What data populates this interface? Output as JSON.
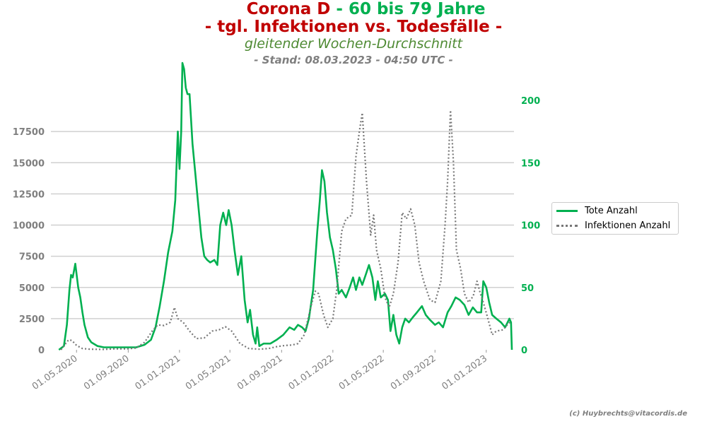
{
  "title": {
    "line1_red": "Corona D",
    "line1_green": " - 60 bis 79 Jahre",
    "line2": "- tgl. Infektionen vs. Todesfälle -",
    "line3": "gleitender Wochen-Durchschnitt",
    "line4": "- Stand: 08.03.2023 - 04:50 UTC -"
  },
  "credit": "(c) Huybrechts@vitacordis.de",
  "legend": {
    "placement": "right",
    "items": [
      "Tote Anzahl",
      "Infektionen Anzahl"
    ]
  },
  "colors": {
    "deaths": "#00b050",
    "infections": "#777777",
    "title_red": "#c00000",
    "title_green": "#00b050",
    "grid": "#d0d0d0",
    "left_ticks": "#7f7f7f",
    "right_ticks": "#00b050"
  },
  "chart_data": {
    "type": "line",
    "x_type": "date",
    "xlim": [
      "2020-03-01",
      "2023-03-08"
    ],
    "x_ticks": [
      {
        "date": "2020-05-01",
        "label": "01.05.2020"
      },
      {
        "date": "2020-09-01",
        "label": "01.09.2020"
      },
      {
        "date": "2021-01-01",
        "label": "01.01.2021"
      },
      {
        "date": "2021-05-01",
        "label": "01.05.2021"
      },
      {
        "date": "2021-09-01",
        "label": "01.09.2021"
      },
      {
        "date": "2022-01-01",
        "label": "01.01.2022"
      },
      {
        "date": "2022-05-01",
        "label": "01.05.2022"
      },
      {
        "date": "2022-09-01",
        "label": "01.09.2022"
      },
      {
        "date": "2023-01-01",
        "label": "01.01.2023"
      }
    ],
    "grid": "horizontal",
    "y_left": {
      "series": "Infektionen Anzahl",
      "ylim": [
        0,
        20000
      ],
      "ticks": [
        0,
        2500,
        5000,
        7500,
        10000,
        12500,
        15000,
        17500
      ],
      "tick_labels": [
        "0",
        "2500",
        "5000",
        "7500",
        "10000",
        "12500",
        "15000",
        "17500"
      ]
    },
    "y_right": {
      "series": "Tote Anzahl",
      "ylim": [
        0,
        200
      ],
      "ticks": [
        0,
        50,
        100,
        150,
        200
      ],
      "tick_labels": [
        "0",
        "50",
        "100",
        "150",
        "200"
      ]
    },
    "series": [
      {
        "name": "Tote Anzahl",
        "axis": "right",
        "style": "solid",
        "points": [
          [
            "2020-03-20",
            0
          ],
          [
            "2020-04-01",
            3
          ],
          [
            "2020-04-08",
            20
          ],
          [
            "2020-04-14",
            48
          ],
          [
            "2020-04-18",
            60
          ],
          [
            "2020-04-22",
            58
          ],
          [
            "2020-04-28",
            69
          ],
          [
            "2020-05-05",
            50
          ],
          [
            "2020-05-10",
            42
          ],
          [
            "2020-05-15",
            30
          ],
          [
            "2020-05-20",
            20
          ],
          [
            "2020-05-28",
            10
          ],
          [
            "2020-06-05",
            6
          ],
          [
            "2020-06-20",
            3
          ],
          [
            "2020-07-05",
            2
          ],
          [
            "2020-08-01",
            2
          ],
          [
            "2020-09-01",
            2
          ],
          [
            "2020-09-20",
            2
          ],
          [
            "2020-10-10",
            4
          ],
          [
            "2020-10-25",
            8
          ],
          [
            "2020-11-05",
            18
          ],
          [
            "2020-11-15",
            35
          ],
          [
            "2020-11-25",
            55
          ],
          [
            "2020-12-05",
            78
          ],
          [
            "2020-12-15",
            95
          ],
          [
            "2020-12-22",
            120
          ],
          [
            "2020-12-28",
            175
          ],
          [
            "2021-01-01",
            145
          ],
          [
            "2021-01-05",
            175
          ],
          [
            "2021-01-08",
            230
          ],
          [
            "2021-01-12",
            225
          ],
          [
            "2021-01-16",
            210
          ],
          [
            "2021-01-20",
            205
          ],
          [
            "2021-01-25",
            205
          ],
          [
            "2021-02-01",
            165
          ],
          [
            "2021-02-08",
            140
          ],
          [
            "2021-02-15",
            115
          ],
          [
            "2021-02-22",
            90
          ],
          [
            "2021-03-01",
            75
          ],
          [
            "2021-03-08",
            72
          ],
          [
            "2021-03-15",
            70
          ],
          [
            "2021-03-25",
            72
          ],
          [
            "2021-04-01",
            68
          ],
          [
            "2021-04-08",
            100
          ],
          [
            "2021-04-15",
            110
          ],
          [
            "2021-04-22",
            100
          ],
          [
            "2021-04-28",
            112
          ],
          [
            "2021-05-05",
            100
          ],
          [
            "2021-05-12",
            80
          ],
          [
            "2021-05-20",
            60
          ],
          [
            "2021-05-28",
            75
          ],
          [
            "2021-06-05",
            40
          ],
          [
            "2021-06-12",
            22
          ],
          [
            "2021-06-18",
            32
          ],
          [
            "2021-06-25",
            12
          ],
          [
            "2021-07-01",
            5
          ],
          [
            "2021-07-05",
            18
          ],
          [
            "2021-07-10",
            3
          ],
          [
            "2021-07-20",
            5
          ],
          [
            "2021-08-05",
            5
          ],
          [
            "2021-08-20",
            8
          ],
          [
            "2021-09-05",
            12
          ],
          [
            "2021-09-20",
            18
          ],
          [
            "2021-10-01",
            16
          ],
          [
            "2021-10-10",
            20
          ],
          [
            "2021-10-20",
            18
          ],
          [
            "2021-10-28",
            15
          ],
          [
            "2021-11-05",
            25
          ],
          [
            "2021-11-15",
            48
          ],
          [
            "2021-11-25",
            95
          ],
          [
            "2021-12-01",
            120
          ],
          [
            "2021-12-06",
            144
          ],
          [
            "2021-12-12",
            135
          ],
          [
            "2021-12-18",
            110
          ],
          [
            "2021-12-25",
            90
          ],
          [
            "2022-01-01",
            80
          ],
          [
            "2022-01-08",
            65
          ],
          [
            "2022-01-15",
            45
          ],
          [
            "2022-01-22",
            48
          ],
          [
            "2022-02-01",
            42
          ],
          [
            "2022-02-10",
            50
          ],
          [
            "2022-02-18",
            58
          ],
          [
            "2022-02-25",
            48
          ],
          [
            "2022-03-05",
            58
          ],
          [
            "2022-03-12",
            52
          ],
          [
            "2022-03-20",
            60
          ],
          [
            "2022-03-28",
            68
          ],
          [
            "2022-04-05",
            58
          ],
          [
            "2022-04-12",
            40
          ],
          [
            "2022-04-18",
            55
          ],
          [
            "2022-04-25",
            42
          ],
          [
            "2022-05-05",
            45
          ],
          [
            "2022-05-12",
            40
          ],
          [
            "2022-05-18",
            15
          ],
          [
            "2022-05-25",
            28
          ],
          [
            "2022-06-01",
            12
          ],
          [
            "2022-06-08",
            5
          ],
          [
            "2022-06-15",
            18
          ],
          [
            "2022-06-22",
            25
          ],
          [
            "2022-07-01",
            22
          ],
          [
            "2022-07-10",
            26
          ],
          [
            "2022-07-20",
            30
          ],
          [
            "2022-08-01",
            35
          ],
          [
            "2022-08-10",
            28
          ],
          [
            "2022-08-20",
            24
          ],
          [
            "2022-09-01",
            20
          ],
          [
            "2022-09-10",
            22
          ],
          [
            "2022-09-20",
            18
          ],
          [
            "2022-10-01",
            30
          ],
          [
            "2022-10-10",
            35
          ],
          [
            "2022-10-20",
            42
          ],
          [
            "2022-10-30",
            40
          ],
          [
            "2022-11-10",
            36
          ],
          [
            "2022-11-20",
            28
          ],
          [
            "2022-11-30",
            34
          ],
          [
            "2022-12-10",
            30
          ],
          [
            "2022-12-20",
            30
          ],
          [
            "2022-12-25",
            55
          ],
          [
            "2023-01-01",
            50
          ],
          [
            "2023-01-08",
            38
          ],
          [
            "2023-01-15",
            28
          ],
          [
            "2023-01-25",
            25
          ],
          [
            "2023-02-05",
            22
          ],
          [
            "2023-02-15",
            18
          ],
          [
            "2023-02-25",
            25
          ],
          [
            "2023-03-01",
            22
          ],
          [
            "2023-03-03",
            0
          ]
        ]
      },
      {
        "name": "Infektionen Anzahl",
        "axis": "left",
        "style": "dotted",
        "points": [
          [
            "2020-03-25",
            0
          ],
          [
            "2020-04-05",
            500
          ],
          [
            "2020-04-12",
            800
          ],
          [
            "2020-04-20",
            750
          ],
          [
            "2020-05-01",
            350
          ],
          [
            "2020-05-15",
            100
          ],
          [
            "2020-06-01",
            50
          ],
          [
            "2020-07-01",
            30
          ],
          [
            "2020-08-01",
            80
          ],
          [
            "2020-09-01",
            80
          ],
          [
            "2020-09-20",
            150
          ],
          [
            "2020-10-10",
            600
          ],
          [
            "2020-10-28",
            1500
          ],
          [
            "2020-11-10",
            2000
          ],
          [
            "2020-11-25",
            1950
          ],
          [
            "2020-12-10",
            2200
          ],
          [
            "2020-12-20",
            3400
          ],
          [
            "2020-12-28",
            2500
          ],
          [
            "2021-01-10",
            2200
          ],
          [
            "2021-01-25",
            1500
          ],
          [
            "2021-02-10",
            900
          ],
          [
            "2021-03-01",
            950
          ],
          [
            "2021-03-20",
            1500
          ],
          [
            "2021-04-05",
            1600
          ],
          [
            "2021-04-20",
            1850
          ],
          [
            "2021-05-05",
            1500
          ],
          [
            "2021-05-25",
            500
          ],
          [
            "2021-06-15",
            100
          ],
          [
            "2021-07-10",
            50
          ],
          [
            "2021-08-01",
            100
          ],
          [
            "2021-08-20",
            250
          ],
          [
            "2021-09-10",
            350
          ],
          [
            "2021-09-25",
            380
          ],
          [
            "2021-10-10",
            500
          ],
          [
            "2021-10-25",
            1200
          ],
          [
            "2021-11-10",
            3500
          ],
          [
            "2021-11-20",
            4700
          ],
          [
            "2021-11-28",
            4500
          ],
          [
            "2021-12-10",
            2800
          ],
          [
            "2021-12-20",
            1800
          ],
          [
            "2022-01-01",
            2500
          ],
          [
            "2022-01-10",
            4800
          ],
          [
            "2022-01-22",
            9500
          ],
          [
            "2022-02-01",
            10500
          ],
          [
            "2022-02-15",
            10800
          ],
          [
            "2022-02-25",
            15500
          ],
          [
            "2022-03-05",
            17500
          ],
          [
            "2022-03-12",
            19000
          ],
          [
            "2022-03-22",
            13500
          ],
          [
            "2022-04-01",
            9200
          ],
          [
            "2022-04-08",
            10800
          ],
          [
            "2022-04-15",
            8000
          ],
          [
            "2022-04-25",
            6500
          ],
          [
            "2022-05-05",
            4200
          ],
          [
            "2022-05-15",
            3400
          ],
          [
            "2022-05-25",
            4500
          ],
          [
            "2022-06-05",
            7000
          ],
          [
            "2022-06-15",
            11000
          ],
          [
            "2022-06-25",
            10500
          ],
          [
            "2022-07-05",
            11300
          ],
          [
            "2022-07-15",
            10000
          ],
          [
            "2022-07-25",
            7000
          ],
          [
            "2022-08-05",
            5500
          ],
          [
            "2022-08-20",
            4000
          ],
          [
            "2022-09-01",
            3800
          ],
          [
            "2022-09-15",
            5500
          ],
          [
            "2022-09-25",
            10000
          ],
          [
            "2022-10-01",
            13500
          ],
          [
            "2022-10-08",
            19200
          ],
          [
            "2022-10-15",
            15000
          ],
          [
            "2022-10-22",
            8000
          ],
          [
            "2022-11-01",
            6500
          ],
          [
            "2022-11-10",
            4500
          ],
          [
            "2022-11-20",
            3800
          ],
          [
            "2022-12-01",
            4300
          ],
          [
            "2022-12-10",
            5500
          ],
          [
            "2022-12-18",
            4500
          ],
          [
            "2022-12-25",
            3800
          ],
          [
            "2023-01-05",
            2500
          ],
          [
            "2023-01-15",
            1200
          ],
          [
            "2023-01-25",
            1500
          ],
          [
            "2023-02-10",
            1600
          ],
          [
            "2023-02-20",
            2000
          ],
          [
            "2023-03-01",
            2300
          ]
        ]
      }
    ]
  }
}
